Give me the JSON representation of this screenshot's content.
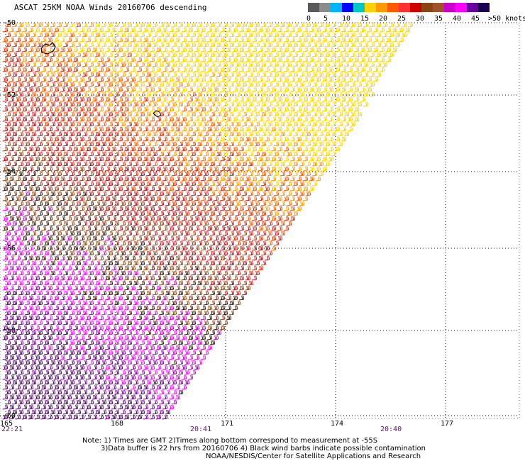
{
  "title": "ASCAT 25KM NOAA Winds 20160706 descending",
  "legend": {
    "colors": [
      "#5a5a5a",
      "#8c8c8c",
      "#00b4ff",
      "#0000ff",
      "#00c8c8",
      "#ffd200",
      "#ff9a00",
      "#ff5a00",
      "#ff3030",
      "#d00000",
      "#8b4513",
      "#a0522d",
      "#cc00cc",
      "#ff00ff",
      "#6a00a0",
      "#1a0050"
    ],
    "labels": [
      "0",
      "5",
      "10",
      "15",
      "20",
      "25",
      "30",
      "35",
      "40",
      "45",
      ">50 knots"
    ],
    "wind_bins": [
      "#ffd200",
      "#ff9a00",
      "#ff5a00",
      "#e03000",
      "#cc2222",
      "#b01010",
      "#8b4513",
      "#3a1a0a",
      "#cc00cc",
      "#ff00ff",
      "#8000a0",
      "#4a0060"
    ]
  },
  "latitudes": [
    "-50",
    "-52",
    "-54",
    "-56",
    "-58",
    "-60"
  ],
  "longitudes": [
    "165",
    "168",
    "171",
    "174",
    "177"
  ],
  "times": [
    "22:21",
    "20:41",
    "20:40"
  ],
  "notes": [
    "Note: 1) Times are GMT 2)Times along bottom correspond to measurement at -55S",
    "3)Data buffer is 22 hrs from 20160706 4) Black wind barbs indicate possible contamination",
    "NOAA/NESDIS/Center for Satellite Applications and Research"
  ]
}
